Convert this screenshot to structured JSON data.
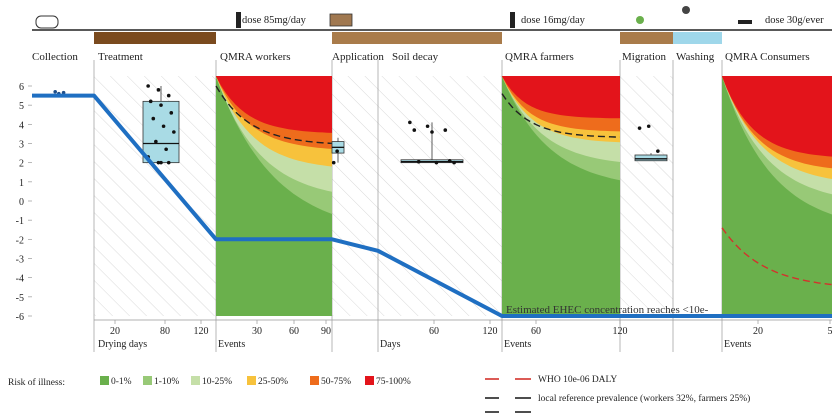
{
  "chart_data": {
    "type": "area",
    "title": "",
    "ylabel": "",
    "ylim": [
      -6,
      6
    ],
    "y_ticks": [
      6,
      5,
      4,
      3,
      2,
      1,
      0,
      -1,
      -2,
      -3,
      -4,
      -5,
      -6
    ],
    "stages": [
      {
        "key": "collection",
        "label": "Collection"
      },
      {
        "key": "treatment",
        "label": "Treatment"
      },
      {
        "key": "qmra_workers",
        "label": "QMRA workers",
        "dose": "dose 85mg/day"
      },
      {
        "key": "application",
        "label": "Application"
      },
      {
        "key": "soil_decay",
        "label": "Soil decay"
      },
      {
        "key": "qmra_farmers",
        "label": "QMRA farmers",
        "dose": "dose 16mg/day"
      },
      {
        "key": "migration",
        "label": "Migration"
      },
      {
        "key": "washing",
        "label": "Washing"
      },
      {
        "key": "qmra_consumers",
        "label": "QMRA Consumers",
        "dose": "dose 30g/ever"
      }
    ],
    "x_axes": [
      {
        "stage": "treatment",
        "label": "Drying days",
        "ticks": [
          20,
          80,
          120
        ]
      },
      {
        "stage": "qmra_workers",
        "label": "Events",
        "ticks": [
          30,
          60,
          90
        ]
      },
      {
        "stage": "soil_decay",
        "label": "Days",
        "ticks": [
          60,
          120
        ]
      },
      {
        "stage": "qmra_farmers",
        "label": "Events",
        "ticks": [
          60,
          120
        ]
      },
      {
        "stage": "qmra_consumers",
        "label": "Events",
        "ticks": [
          20,
          5
        ]
      }
    ],
    "concentration_path": {
      "name": "",
      "points": [
        {
          "stage": "collection",
          "x": 0,
          "y": 5.5
        },
        {
          "stage": "treatment",
          "x": 0,
          "y": 5.5
        },
        {
          "stage": "treatment",
          "x": 120,
          "y": -2.0
        },
        {
          "stage": "qmra_workers",
          "x": 90,
          "y": -2.0
        },
        {
          "stage": "application",
          "x": 0,
          "y": -2.0
        },
        {
          "stage": "soil_decay",
          "x": 0,
          "y": -2.6
        },
        {
          "stage": "soil_decay",
          "x": 120,
          "y": -6.0
        },
        {
          "stage": "qmra_farmers",
          "x": 120,
          "y": -6.0
        },
        {
          "stage": "qmra_consumers",
          "x": 60,
          "y": -6.0
        }
      ]
    },
    "annotation": "Estimated EHEC concentration reaches <10e-",
    "boxplots": [
      {
        "stage": "collection",
        "median": 5.6,
        "q1": 5.55,
        "q3": 5.65,
        "min": 5.5,
        "max": 5.7,
        "outliers": [
          5.5,
          5.6,
          5.65,
          5.7
        ]
      },
      {
        "stage": "treatment",
        "median": 3.0,
        "q1": 2.0,
        "q3": 5.2,
        "min": 2.0,
        "max": 6.0,
        "outliers": [
          6.0,
          5.8,
          5.5,
          5.2,
          5.0,
          4.6,
          4.3,
          3.9,
          3.6,
          3.1,
          2.7,
          2.3,
          2.0,
          2.0,
          2.0,
          2.0
        ]
      },
      {
        "stage": "application",
        "median": 2.8,
        "q1": 2.5,
        "q3": 3.1,
        "min": 2.0,
        "max": 3.3,
        "outliers": [
          2.0,
          2.6
        ]
      },
      {
        "stage": "soil_decay",
        "median": 2.05,
        "q1": 2.0,
        "q3": 2.15,
        "min": 2.0,
        "max": 4.1,
        "outliers": [
          4.1,
          3.9,
          3.7,
          3.7,
          3.6,
          2.1,
          2.05,
          2.0,
          2.0
        ]
      },
      {
        "stage": "migration",
        "median": 2.2,
        "q1": 2.1,
        "q3": 2.4,
        "min": 2.1,
        "max": 2.5,
        "outliers": [
          3.8,
          3.9,
          2.6
        ]
      }
    ],
    "risk_levels": [
      {
        "label": "0-1%",
        "color": "#6ab04c"
      },
      {
        "label": "1-10%",
        "color": "#98c977"
      },
      {
        "label": "10-25%",
        "color": "#c5dfa8"
      },
      {
        "label": "25-50%",
        "color": "#f7c23c"
      },
      {
        "label": "50-75%",
        "color": "#ee6c1c"
      },
      {
        "label": "75-100%",
        "color": "#e3141b"
      }
    ],
    "legend": {
      "risk_title": "Risk of illness:",
      "lines": [
        {
          "label": "WHO 10e-06 DALY",
          "color": "#d3322c",
          "style": "dashed"
        },
        {
          "label": "local reference prevalence (workers 32%, farmers 25%)",
          "color": "#222222",
          "style": "dashed"
        },
        {
          "label": "",
          "color": "#222222",
          "style": "solid"
        }
      ]
    },
    "colors": {
      "path": "#1f6fc2",
      "box": "#a9dbe5",
      "soil": "#a97b4a",
      "sludge": "#7a4a1e",
      "water": "#9fd7ea"
    },
    "grid": false
  }
}
